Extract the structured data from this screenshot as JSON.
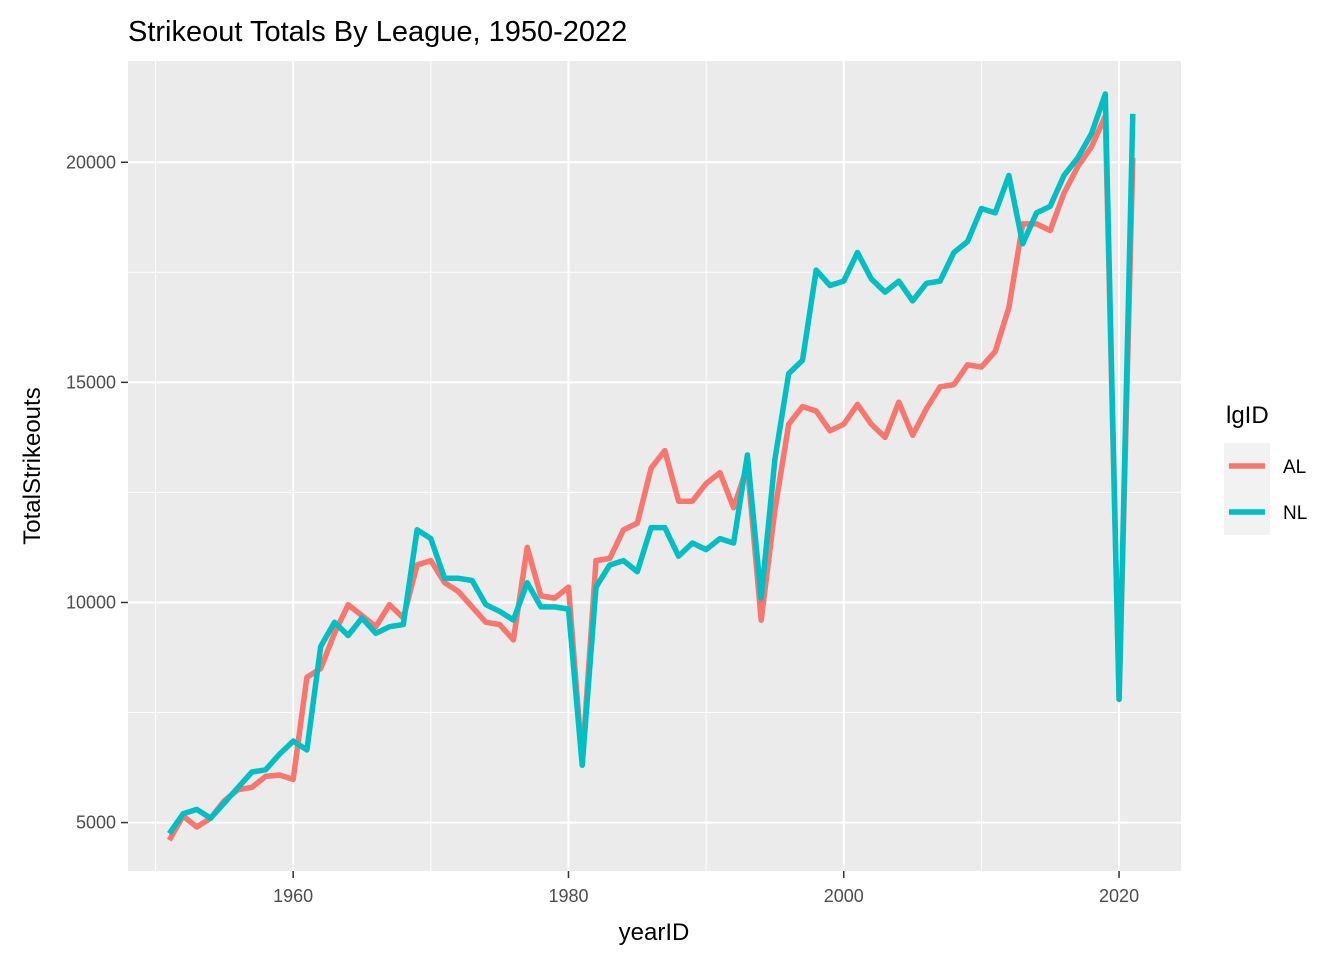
{
  "chart_data": {
    "type": "line",
    "title": "Strikeout Totals By League, 1950-2022",
    "xlabel": "yearID",
    "ylabel": "TotalStrikeouts",
    "xlim": [
      1948,
      2024.5
    ],
    "ylim": [
      3900,
      22300
    ],
    "x_ticks": [
      1960,
      1980,
      2000,
      2020
    ],
    "y_ticks": [
      5000,
      10000,
      15000,
      20000
    ],
    "x_tick_labels": [
      "1960",
      "1980",
      "2000",
      "2020"
    ],
    "y_tick_labels": [
      "5000",
      "10000",
      "15000",
      "20000"
    ],
    "grid": true,
    "legend": {
      "title": "lgID",
      "position": "right"
    },
    "years": [
      1951,
      1952,
      1953,
      1954,
      1955,
      1956,
      1957,
      1958,
      1959,
      1960,
      1961,
      1962,
      1963,
      1964,
      1965,
      1966,
      1967,
      1968,
      1969,
      1970,
      1971,
      1972,
      1973,
      1974,
      1975,
      1976,
      1977,
      1978,
      1979,
      1980,
      1981,
      1982,
      1983,
      1984,
      1985,
      1986,
      1987,
      1988,
      1989,
      1990,
      1991,
      1992,
      1993,
      1994,
      1995,
      1996,
      1997,
      1998,
      1999,
      2000,
      2001,
      2002,
      2003,
      2004,
      2005,
      2006,
      2007,
      2008,
      2009,
      2010,
      2011,
      2012,
      2013,
      2014,
      2015,
      2016,
      2017,
      2018,
      2019,
      2020,
      2021
    ],
    "series": [
      {
        "name": "AL",
        "color": "#F8766D",
        "values": [
          4600,
          5150,
          4900,
          5100,
          5500,
          5750,
          5800,
          6050,
          6080,
          5980,
          8300,
          8500,
          9300,
          9950,
          9700,
          9450,
          9950,
          9650,
          10850,
          10950,
          10450,
          10250,
          9900,
          9550,
          9500,
          9150,
          11250,
          10150,
          10100,
          10350,
          6400,
          10950,
          11000,
          11650,
          11800,
          13050,
          13450,
          12300,
          12300,
          12700,
          12950,
          12150,
          13100,
          9600,
          12100,
          14050,
          14450,
          14350,
          13900,
          14050,
          14500,
          14050,
          13750,
          14550,
          13800,
          14400,
          14900,
          14950,
          15400,
          15350,
          15700,
          16700,
          18600,
          18600,
          18450,
          19300,
          19900,
          20350,
          21050,
          7800,
          20100
        ]
      },
      {
        "name": "NL",
        "color": "#00BFC4",
        "values": [
          4750,
          5200,
          5300,
          5100,
          5450,
          5800,
          6150,
          6200,
          6550,
          6850,
          6650,
          9000,
          9550,
          9250,
          9650,
          9300,
          9450,
          9500,
          11650,
          11450,
          10550,
          10550,
          10500,
          9950,
          9800,
          9600,
          10450,
          9900,
          9900,
          9850,
          6300,
          10350,
          10850,
          10950,
          10700,
          11700,
          11700,
          11050,
          11350,
          11200,
          11450,
          11350,
          13350,
          10100,
          13250,
          15200,
          15500,
          17550,
          17200,
          17300,
          17950,
          17350,
          17050,
          17300,
          16850,
          17250,
          17300,
          17950,
          18200,
          18950,
          18850,
          19700,
          18150,
          18850,
          19000,
          19700,
          20100,
          20650,
          21550,
          7800,
          21100
        ]
      }
    ]
  }
}
